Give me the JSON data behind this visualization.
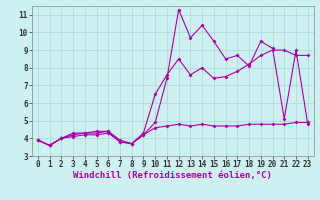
{
  "xlabel": "Windchill (Refroidissement éolien,°C)",
  "ylabel": "",
  "background_color": "#cff0f0",
  "grid_color": "#aadddd",
  "line_color": "#aa00aa",
  "xlim": [
    -0.5,
    23.5
  ],
  "ylim": [
    3,
    11.5
  ],
  "xticks": [
    0,
    1,
    2,
    3,
    4,
    5,
    6,
    7,
    8,
    9,
    10,
    11,
    12,
    13,
    14,
    15,
    16,
    17,
    18,
    19,
    20,
    21,
    22,
    23
  ],
  "yticks": [
    3,
    4,
    5,
    6,
    7,
    8,
    9,
    10,
    11
  ],
  "x_data": [
    0,
    1,
    2,
    3,
    4,
    5,
    6,
    7,
    8,
    9,
    10,
    11,
    12,
    13,
    14,
    15,
    16,
    17,
    18,
    19,
    20,
    21,
    22,
    23
  ],
  "line1_y": [
    3.9,
    3.6,
    4.0,
    4.3,
    4.3,
    4.4,
    4.4,
    3.8,
    3.7,
    4.2,
    4.9,
    7.4,
    11.3,
    9.7,
    10.4,
    9.5,
    8.5,
    8.7,
    8.1,
    9.5,
    9.1,
    5.1,
    9.0,
    4.8
  ],
  "line2_y": [
    3.9,
    3.6,
    4.0,
    4.2,
    4.3,
    4.3,
    4.4,
    3.9,
    3.7,
    4.3,
    6.5,
    7.6,
    8.5,
    7.6,
    8.0,
    7.4,
    7.5,
    7.8,
    8.2,
    8.7,
    9.0,
    9.0,
    8.7,
    8.7
  ],
  "line3_y": [
    3.9,
    3.6,
    4.0,
    4.1,
    4.2,
    4.2,
    4.3,
    3.8,
    3.7,
    4.2,
    4.6,
    4.7,
    4.8,
    4.7,
    4.8,
    4.7,
    4.7,
    4.7,
    4.8,
    4.8,
    4.8,
    4.8,
    4.9,
    4.9
  ],
  "tick_fontsize": 5.5,
  "label_fontsize": 6.5
}
